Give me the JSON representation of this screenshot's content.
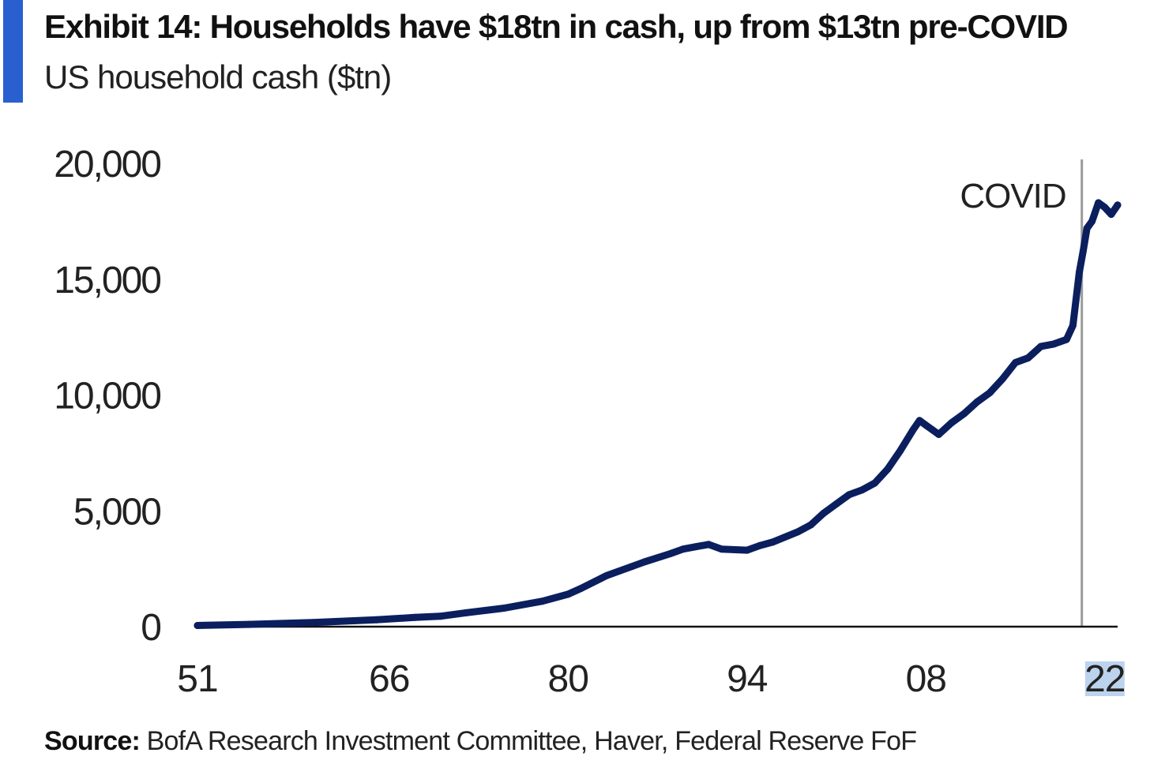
{
  "header": {
    "title": "Exhibit 14: Households have $18tn in cash, up from $13tn pre-COVID",
    "subtitle": "US household cash ($tn)"
  },
  "footer": {
    "source_label": "Source:",
    "source_text": " BofA Research Investment Committee, Haver, Federal Reserve FoF"
  },
  "colors": {
    "accent": "#2a5fd0",
    "series": "#0b1f5e",
    "covid_line": "#9a9a9a",
    "highlight": "#bcd3ee"
  },
  "chart_data": {
    "type": "line",
    "title": "",
    "xlabel": "",
    "ylabel": "",
    "xlim": [
      1951,
      2023
    ],
    "ylim": [
      0,
      20000
    ],
    "yticks": [
      0,
      5000,
      10000,
      15000,
      20000
    ],
    "ytick_labels": [
      "0",
      "5,000",
      "10,000",
      "15,000",
      "20,000"
    ],
    "xticks": [
      1951,
      1966,
      1980,
      1994,
      2008,
      2022
    ],
    "xtick_labels": [
      "51",
      "66",
      "80",
      "94",
      "08",
      "22"
    ],
    "highlighted_xtick": "22",
    "grid": false,
    "annotations": [
      {
        "text": "COVID",
        "x": 2020.2,
        "kind": "vertical-line"
      }
    ],
    "series": [
      {
        "x": [
          1951,
          1955,
          1960,
          1965,
          1968,
          1970,
          1972,
          1975,
          1978,
          1980,
          1981,
          1983,
          1985,
          1986,
          1988,
          1989,
          1990,
          1991,
          1992,
          1994,
          1995,
          1996,
          1998,
          1999,
          2000,
          2001,
          2002,
          2003,
          2004,
          2005,
          2006,
          2007,
          2007.5,
          2008,
          2008.5,
          2009,
          2010,
          2011,
          2012,
          2013,
          2014,
          2015,
          2016,
          2017,
          2018,
          2019,
          2019.5,
          2020,
          2020.3,
          2020.6,
          2021,
          2021.5,
          2022,
          2022.5,
          2023
        ],
        "y": [
          50,
          100,
          180,
          300,
          400,
          450,
          600,
          800,
          1100,
          1400,
          1650,
          2200,
          2600,
          2800,
          3150,
          3350,
          3450,
          3550,
          3350,
          3300,
          3500,
          3650,
          4100,
          4400,
          4900,
          5300,
          5700,
          5900,
          6200,
          6800,
          7600,
          8500,
          8900,
          8700,
          8500,
          8300,
          8800,
          9200,
          9700,
          10100,
          10700,
          11400,
          11600,
          12100,
          12200,
          12400,
          13000,
          15300,
          16200,
          17200,
          17500,
          18300,
          18100,
          17800,
          18200
        ]
      }
    ]
  }
}
